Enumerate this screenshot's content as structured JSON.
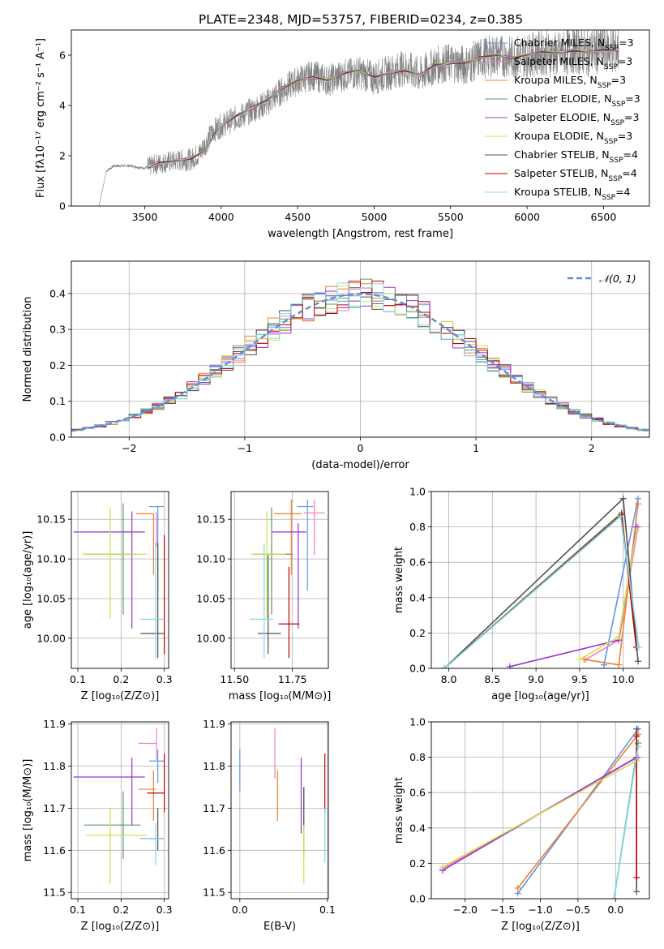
{
  "figure": {
    "title": "PLATE=2348, MJD=53757, FIBERID=0234, z=0.385",
    "models": [
      {
        "name": "Chabrier MILES",
        "nssp": "3",
        "color": "#6495ed"
      },
      {
        "name": "Salpeter MILES",
        "nssp": "3",
        "color": "#ee82c0"
      },
      {
        "name": "Kroupa MILES",
        "nssp": "3",
        "color": "#f08030"
      },
      {
        "name": "Chabrier ELODIE",
        "nssp": "3",
        "color": "#5a9a5a"
      },
      {
        "name": "Salpeter ELODIE",
        "nssp": "3",
        "color": "#9932cc"
      },
      {
        "name": "Kroupa ELODIE",
        "nssp": "3",
        "color": "#d4e04a"
      },
      {
        "name": "Chabrier STELIB",
        "nssp": "4",
        "color": "#505050"
      },
      {
        "name": "Salpeter STELIB",
        "nssp": "4",
        "color": "#c00000"
      },
      {
        "name": "Kroupa STELIB",
        "nssp": "4",
        "color": "#80d8e8"
      }
    ],
    "nssp_prefix": "N",
    "nssp_sub": "SSP"
  },
  "chart_data": [
    {
      "id": "spectrum",
      "type": "line",
      "xlabel": "wavelength [Angstrom, rest frame]",
      "ylabel": "Flux [fλ10⁻¹⁷ erg cm⁻² s⁻¹ A⁻¹]",
      "xlim": [
        3020,
        6800
      ],
      "ylim": [
        0,
        7
      ],
      "xticks": [
        3500,
        4000,
        4500,
        5000,
        5500,
        6000,
        6500
      ],
      "yticks": [
        0,
        2,
        4,
        6
      ],
      "legend": "upper right",
      "data_color": "#808080",
      "data": {
        "x": [
          3200,
          3250,
          3300,
          3400,
          3500,
          3560,
          3600,
          3700,
          3800,
          3860,
          3900,
          3950,
          4000,
          4100,
          4200,
          4300,
          4400,
          4500,
          4600,
          4700,
          4800,
          4900,
          5000,
          5100,
          5200,
          5300,
          5400,
          5500,
          5600,
          5700,
          5800,
          5900,
          6000,
          6100,
          6200,
          6300,
          6400,
          6500,
          6600
        ],
        "y": [
          0,
          1.4,
          1.6,
          1.6,
          1.5,
          1.65,
          1.7,
          1.8,
          1.85,
          2.1,
          2.5,
          3.0,
          3.2,
          3.5,
          3.8,
          4.1,
          4.6,
          5.0,
          5.2,
          5.0,
          5.2,
          5.3,
          5.1,
          5.3,
          5.5,
          5.2,
          5.6,
          5.7,
          5.6,
          5.9,
          6.0,
          5.9,
          6.0,
          6.1,
          6.0,
          6.2,
          6.1,
          6.3,
          6.2
        ],
        "noise_start": 3520
      },
      "model_curve": {
        "x": [
          3520,
          3600,
          3700,
          3800,
          3900,
          3950,
          4000,
          4100,
          4200,
          4300,
          4400,
          4500,
          4600,
          4700,
          4800,
          4900,
          5000,
          5100,
          5200,
          5300,
          5400,
          5500,
          5600,
          5700,
          5800,
          5900,
          6000,
          6100,
          6200,
          6300,
          6400,
          6500,
          6600
        ],
        "y": [
          1.5,
          1.7,
          1.8,
          1.9,
          2.2,
          2.8,
          3.2,
          3.6,
          3.9,
          4.2,
          4.7,
          5.0,
          5.1,
          5.0,
          5.3,
          5.4,
          5.1,
          5.3,
          5.4,
          5.2,
          5.6,
          5.7,
          5.7,
          5.9,
          6.0,
          5.9,
          6.0,
          6.1,
          6.1,
          6.2,
          6.1,
          6.2,
          6.2
        ]
      }
    },
    {
      "id": "residual-distribution",
      "type": "line",
      "xlabel": "(data-model)/error",
      "ylabel": "Normed distribution",
      "xlim": [
        -2.5,
        2.5
      ],
      "ylim": [
        0,
        0.49
      ],
      "xticks": [
        -2,
        -1,
        0,
        1,
        2
      ],
      "yticks": [
        0.0,
        0.1,
        0.2,
        0.3,
        0.4
      ],
      "grid": true,
      "legend": "upper right",
      "gaussian": {
        "name": "𝒩(0, 1)",
        "color": "#5b8fd6",
        "mean": 0,
        "sigma": 1
      },
      "hist_bin_width": 0.1
    },
    {
      "id": "age-vs-Z",
      "type": "scatter",
      "xlabel": "Z [log₁₀(Z/Z⊙)]",
      "ylabel": "age  [log₁₀(age/yr)]",
      "xlim": [
        0.085,
        0.31
      ],
      "ylim": [
        9.962,
        10.185
      ],
      "xticks": [
        0.1,
        0.2,
        0.3
      ],
      "yticks": [
        10.0,
        10.05,
        10.1,
        10.15
      ],
      "grid": true,
      "points": [
        {
          "model": 0,
          "x": 0.285,
          "y": 10.166,
          "xlo": 0.265,
          "xhi": 0.3,
          "ylo": 10.06,
          "yhi": 10.166
        },
        {
          "model": 1,
          "x": 0.282,
          "y": 10.158,
          "xlo": 0.28,
          "xhi": 0.283,
          "ylo": 10.115,
          "yhi": 10.158
        },
        {
          "model": 2,
          "x": 0.275,
          "y": 10.157,
          "xlo": 0.235,
          "xhi": 0.275,
          "ylo": 10.08,
          "yhi": 10.157
        },
        {
          "model": 3,
          "x": 0.205,
          "y": 10.106,
          "xlo": 0.115,
          "xhi": 0.235,
          "ylo": 10.03,
          "yhi": 10.17
        },
        {
          "model": 4,
          "x": 0.225,
          "y": 10.134,
          "xlo": 0.09,
          "xhi": 0.255,
          "ylo": 10.012,
          "yhi": 10.16
        },
        {
          "model": 5,
          "x": 0.175,
          "y": 10.106,
          "xlo": 0.11,
          "xhi": 0.26,
          "ylo": 10.025,
          "yhi": 10.165
        },
        {
          "model": 6,
          "x": 0.285,
          "y": 10.006,
          "xlo": 0.245,
          "xhi": 0.3,
          "ylo": 9.975,
          "yhi": 10.12
        },
        {
          "model": 7,
          "x": 0.3,
          "y": 10.018,
          "xlo": 0.3,
          "xhi": 0.3,
          "ylo": 9.98,
          "yhi": 10.13
        },
        {
          "model": 8,
          "x": 0.28,
          "y": 10.024,
          "xlo": 0.245,
          "xhi": 0.3,
          "ylo": 9.975,
          "yhi": 10.12
        }
      ]
    },
    {
      "id": "age-vs-mass",
      "type": "scatter",
      "xlabel": "mass [log₁₀(M/M⊙)]",
      "ylabel": "",
      "xlim": [
        11.485,
        11.905
      ],
      "ylim": [
        9.962,
        10.185
      ],
      "xticks": [
        11.5,
        11.75
      ],
      "xticklabels": [
        "11.50",
        "11.75"
      ],
      "yticks": [
        10.0,
        10.05,
        10.1,
        10.15
      ],
      "grid": true,
      "points": [
        {
          "model": 0,
          "x": 11.815,
          "y": 10.166,
          "xlo": 11.77,
          "xhi": 11.84,
          "ylo": 10.06,
          "yhi": 10.175
        },
        {
          "model": 1,
          "x": 11.845,
          "y": 10.158,
          "xlo": 11.8,
          "xhi": 11.89,
          "ylo": 10.105,
          "yhi": 10.175
        },
        {
          "model": 2,
          "x": 11.745,
          "y": 10.157,
          "xlo": 11.67,
          "xhi": 11.79,
          "ylo": 10.08,
          "yhi": 10.175
        },
        {
          "model": 3,
          "x": 11.66,
          "y": 10.106,
          "xlo": 11.58,
          "xhi": 11.75,
          "ylo": 10.03,
          "yhi": 10.165
        },
        {
          "model": 4,
          "x": 11.775,
          "y": 10.134,
          "xlo": 11.66,
          "xhi": 11.81,
          "ylo": 10.012,
          "yhi": 10.145
        },
        {
          "model": 5,
          "x": 11.64,
          "y": 10.106,
          "xlo": 11.57,
          "xhi": 11.72,
          "ylo": 10.025,
          "yhi": 10.16
        },
        {
          "model": 6,
          "x": 11.645,
          "y": 10.006,
          "xlo": 11.6,
          "xhi": 11.7,
          "ylo": 9.98,
          "yhi": 10.105
        },
        {
          "model": 7,
          "x": 11.735,
          "y": 10.018,
          "xlo": 11.69,
          "xhi": 11.78,
          "ylo": 9.975,
          "yhi": 10.09
        },
        {
          "model": 8,
          "x": 11.628,
          "y": 10.024,
          "xlo": 11.565,
          "xhi": 11.665,
          "ylo": 9.975,
          "yhi": 10.12
        }
      ]
    },
    {
      "id": "massweight-vs-age",
      "type": "line",
      "xlabel": "age  [log₁₀(age/yr)]",
      "ylabel": "mass weight",
      "xlim": [
        7.8,
        10.3
      ],
      "ylim": [
        0,
        1.0
      ],
      "xticks": [
        8.0,
        8.5,
        9.0,
        9.5,
        10.0
      ],
      "yticks": [
        0.0,
        0.2,
        0.4,
        0.6,
        0.8,
        1.0
      ],
      "grid": true,
      "series": [
        {
          "model": 0,
          "x": [
            9.78,
            9.78,
            10.17
          ],
          "y": [
            0.02,
            0.02,
            0.96
          ]
        },
        {
          "model": 1,
          "x": [
            9.57,
            9.95,
            10.17
          ],
          "y": [
            0.05,
            0.16,
            0.8
          ]
        },
        {
          "model": 2,
          "x": [
            9.55,
            9.95,
            10.17
          ],
          "y": [
            0.05,
            0.02,
            0.93
          ]
        },
        {
          "model": 3,
          "x": [
            7.95,
            9.98,
            10.15
          ],
          "y": [
            0.0,
            0.88,
            0.12
          ]
        },
        {
          "model": 4,
          "x": [
            8.7,
            9.95,
            10.15
          ],
          "y": [
            0.01,
            0.16,
            0.8
          ]
        },
        {
          "model": 5,
          "x": [
            9.5,
            9.95,
            10.15
          ],
          "y": [
            0.05,
            0.18,
            0.78
          ]
        },
        {
          "model": 6,
          "x": [
            7.95,
            10.0,
            10.17
          ],
          "y": [
            0.0,
            0.96,
            0.04
          ]
        },
        {
          "model": 7,
          "x": [
            7.95,
            9.98,
            10.15
          ],
          "y": [
            0.0,
            0.87,
            0.12
          ]
        },
        {
          "model": 8,
          "x": [
            7.95,
            9.97,
            10.18
          ],
          "y": [
            0.0,
            0.86,
            0.12
          ]
        }
      ]
    },
    {
      "id": "mass-vs-Z",
      "type": "scatter",
      "xlabel": "Z [log₁₀(Z/Z⊙)]",
      "ylabel": "mass [log₁₀(M/M⊙)]",
      "xlim": [
        0.085,
        0.31
      ],
      "ylim": [
        11.485,
        11.905
      ],
      "xticks": [
        0.1,
        0.2,
        0.3
      ],
      "yticks": [
        11.5,
        11.6,
        11.7,
        11.8,
        11.9
      ],
      "grid": true,
      "points": [
        {
          "model": 0,
          "x": 0.285,
          "y": 11.812,
          "xlo": 0.265,
          "xhi": 0.3,
          "ylo": 11.76,
          "yhi": 11.84
        },
        {
          "model": 1,
          "x": 0.282,
          "y": 11.854,
          "xlo": 0.24,
          "xhi": 0.283,
          "ylo": 11.815,
          "yhi": 11.89
        },
        {
          "model": 2,
          "x": 0.275,
          "y": 11.745,
          "xlo": 0.24,
          "xhi": 0.28,
          "ylo": 11.67,
          "yhi": 11.79
        },
        {
          "model": 3,
          "x": 0.205,
          "y": 11.66,
          "xlo": 0.115,
          "xhi": 0.245,
          "ylo": 11.58,
          "yhi": 11.74
        },
        {
          "model": 4,
          "x": 0.225,
          "y": 11.774,
          "xlo": 0.09,
          "xhi": 0.255,
          "ylo": 11.66,
          "yhi": 11.82
        },
        {
          "model": 5,
          "x": 0.175,
          "y": 11.636,
          "xlo": 0.12,
          "xhi": 0.26,
          "ylo": 11.52,
          "yhi": 11.7
        },
        {
          "model": 6,
          "x": 0.285,
          "y": 11.628,
          "xlo": 0.245,
          "xhi": 0.3,
          "ylo": 11.6,
          "yhi": 11.7
        },
        {
          "model": 7,
          "x": 0.3,
          "y": 11.736,
          "xlo": 0.26,
          "xhi": 0.3,
          "ylo": 11.69,
          "yhi": 11.83
        },
        {
          "model": 8,
          "x": 0.28,
          "y": 11.628,
          "xlo": 0.245,
          "xhi": 0.3,
          "ylo": 11.565,
          "yhi": 11.665
        }
      ]
    },
    {
      "id": "mass-vs-EBV",
      "type": "scatter",
      "xlabel": "E(B-V)",
      "ylabel": "",
      "xlim": [
        -0.01,
        0.101
      ],
      "ylim": [
        11.485,
        11.905
      ],
      "xticks": [
        0.0,
        0.1
      ],
      "yticks": [
        11.5,
        11.6,
        11.7,
        11.8,
        11.9
      ],
      "grid": true,
      "points": [
        {
          "model": 0,
          "x": 0.0,
          "y": 11.79,
          "xlo": 0.0,
          "xhi": 0.0,
          "ylo": 11.74,
          "yhi": 11.84
        },
        {
          "model": 1,
          "x": 0.04,
          "y": 11.83,
          "xlo": 0.04,
          "xhi": 0.04,
          "ylo": 11.77,
          "yhi": 11.89
        },
        {
          "model": 2,
          "x": 0.043,
          "y": 11.73,
          "xlo": 0.043,
          "xhi": 0.043,
          "ylo": 11.67,
          "yhi": 11.79
        },
        {
          "model": 3,
          "x": 0.073,
          "y": 11.68,
          "xlo": 0.073,
          "xhi": 0.073,
          "ylo": 11.58,
          "yhi": 11.75
        },
        {
          "model": 4,
          "x": 0.07,
          "y": 11.74,
          "xlo": 0.07,
          "xhi": 0.07,
          "ylo": 11.64,
          "yhi": 11.82
        },
        {
          "model": 5,
          "x": 0.073,
          "y": 11.62,
          "xlo": 0.073,
          "xhi": 0.073,
          "ylo": 11.52,
          "yhi": 11.7
        },
        {
          "model": 6,
          "x": 0.073,
          "y": 11.7,
          "xlo": 0.073,
          "xhi": 0.073,
          "ylo": 11.66,
          "yhi": 11.75
        },
        {
          "model": 7,
          "x": 0.097,
          "y": 11.76,
          "xlo": 0.097,
          "xhi": 0.097,
          "ylo": 11.69,
          "yhi": 11.83
        },
        {
          "model": 8,
          "x": 0.097,
          "y": 11.62,
          "xlo": 0.097,
          "xhi": 0.097,
          "ylo": 11.57,
          "yhi": 11.7
        }
      ]
    },
    {
      "id": "massweight-vs-Z",
      "type": "line",
      "xlabel": "Z [log₁₀(Z/Z⊙)]",
      "ylabel": "mass weight",
      "xlim": [
        -2.45,
        0.45
      ],
      "ylim": [
        0,
        1.0
      ],
      "xticks": [
        -2.0,
        -1.5,
        -1.0,
        -0.5,
        0.0
      ],
      "yticks": [
        0.0,
        0.2,
        0.4,
        0.6,
        0.8,
        1.0
      ],
      "grid": true,
      "series": [
        {
          "model": 0,
          "x": [
            -1.3,
            0.3
          ],
          "y": [
            0.03,
            0.96
          ]
        },
        {
          "model": 1,
          "x": [
            -2.3,
            0.3
          ],
          "y": [
            0.17,
            0.8
          ]
        },
        {
          "model": 2,
          "x": [
            -1.3,
            0.3
          ],
          "y": [
            0.06,
            0.93
          ]
        },
        {
          "model": 3,
          "x": [
            -0.02,
            0.3
          ],
          "y": [
            0.0,
            0.88
          ]
        },
        {
          "model": 4,
          "x": [
            -2.3,
            0.28
          ],
          "y": [
            0.16,
            0.8
          ]
        },
        {
          "model": 5,
          "x": [
            -2.3,
            0.28
          ],
          "y": [
            0.18,
            0.78
          ]
        },
        {
          "model": 6,
          "x": [
            0.28,
            0.28
          ],
          "y": [
            0.04,
            0.96
          ]
        },
        {
          "model": 7,
          "x": [
            0.28,
            0.28
          ],
          "y": [
            0.12,
            0.92
          ]
        },
        {
          "model": 8,
          "x": [
            -0.02,
            0.3
          ],
          "y": [
            0.0,
            0.86
          ]
        }
      ]
    }
  ]
}
